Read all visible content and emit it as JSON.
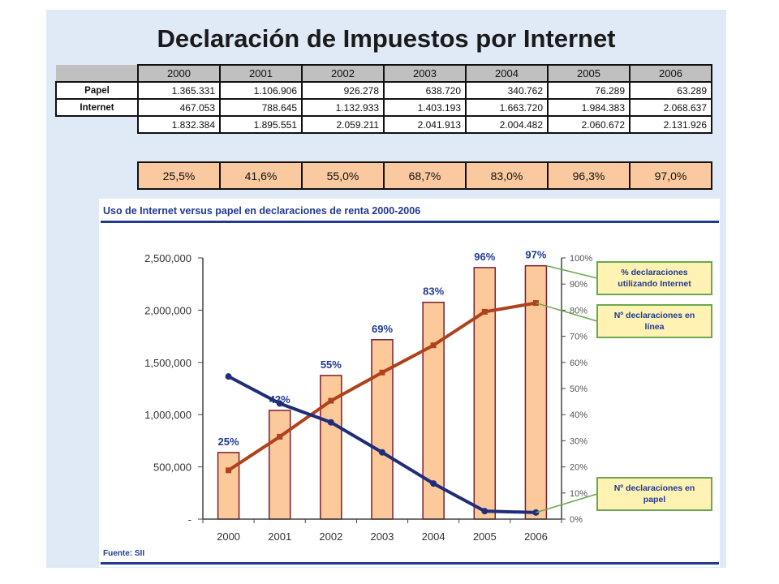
{
  "title": "Declaración de Impuestos por Internet",
  "table": {
    "years": [
      "2000",
      "2001",
      "2002",
      "2003",
      "2004",
      "2005",
      "2006"
    ],
    "rows": [
      {
        "label": "Papel",
        "values": [
          "1.365.331",
          "1.106.906",
          "926.278",
          "638.720",
          "340.762",
          "76.289",
          "63.289"
        ]
      },
      {
        "label": "Internet",
        "values": [
          "467.053",
          "788.645",
          "1.132.933",
          "1.403.193",
          "1.663.720",
          "1.984.383",
          "2.068.637"
        ]
      },
      {
        "label": "",
        "values": [
          "1.832.384",
          "1.895.551",
          "2.059.211",
          "2.041.913",
          "2.004.482",
          "2.060.672",
          "2.131.926"
        ]
      }
    ],
    "percentages": [
      "25,5%",
      "41,6%",
      "55,0%",
      "68,7%",
      "83,0%",
      "96,3%",
      "97,0%"
    ]
  },
  "chart_panel": {
    "title": "Uso de Internet versus papel en declaraciones de renta 2000-2006",
    "source": "Fuente: SII"
  },
  "chart_data": {
    "type": "bar+line",
    "categories": [
      "2000",
      "2001",
      "2002",
      "2003",
      "2004",
      "2005",
      "2006"
    ],
    "bars": {
      "name": "% declaraciones utilizando Internet",
      "axis": "right",
      "values": [
        25.5,
        41.6,
        55.0,
        68.7,
        83.0,
        96.3,
        97.0
      ],
      "labels": [
        "25%",
        "42%",
        "55%",
        "69%",
        "83%",
        "96%",
        "97%"
      ],
      "fill": "#fcc99b",
      "stroke": "#7b1e2e"
    },
    "series": [
      {
        "name": "Nº declaraciones en línea",
        "axis": "left",
        "color": "#b0421b",
        "values": [
          467053,
          788645,
          1132933,
          1403193,
          1663720,
          1984383,
          2068637
        ]
      },
      {
        "name": "Nº declaraciones en papel",
        "axis": "left",
        "color": "#1f2d7a",
        "values": [
          1365331,
          1106906,
          926278,
          638720,
          340762,
          76289,
          63289
        ]
      }
    ],
    "left_axis": {
      "ylim": [
        0,
        2500000
      ],
      "ticks": [
        {
          "v": 0,
          "label": "-"
        },
        {
          "v": 500000,
          "label": "500,000"
        },
        {
          "v": 1000000,
          "label": "1,000,000"
        },
        {
          "v": 1500000,
          "label": "1,500,000"
        },
        {
          "v": 2000000,
          "label": "2,000,000"
        },
        {
          "v": 2500000,
          "label": "2,500,000"
        }
      ]
    },
    "right_axis": {
      "ylim": [
        0,
        100
      ],
      "ticks": [
        "0%",
        "10%",
        "20%",
        "30%",
        "40%",
        "50%",
        "60%",
        "70%",
        "80%",
        "90%",
        "100%"
      ]
    },
    "callouts": [
      {
        "text": [
          "% declaraciones",
          "utilizando Internet"
        ],
        "target": "bar",
        "index": 6
      },
      {
        "text": [
          "Nº declaraciones en",
          "línea"
        ],
        "target": "series0",
        "index": 6
      },
      {
        "text": [
          "Nº declaraciones en",
          "papel"
        ],
        "target": "series1",
        "index": 6
      }
    ],
    "grid": false
  }
}
